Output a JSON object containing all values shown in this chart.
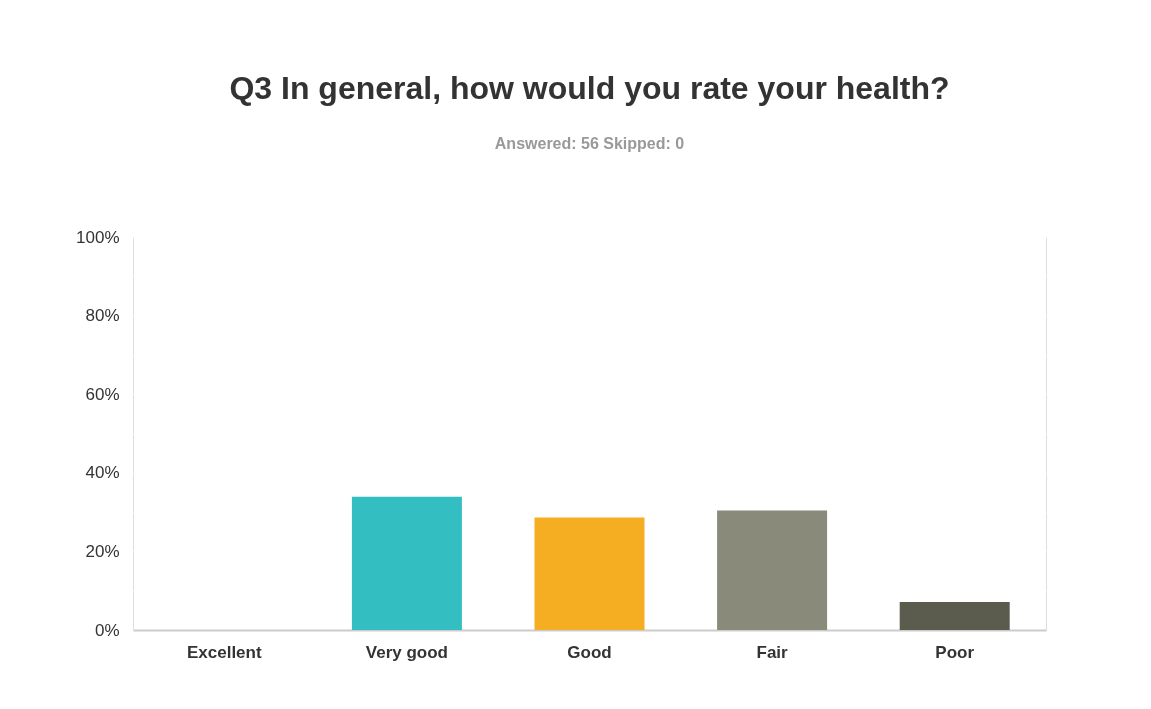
{
  "chart_data": {
    "type": "bar",
    "title": "Q3 In general, how would you rate your health?",
    "subtitle": "Answered: 56    Skipped: 0",
    "categories": [
      "Excellent",
      "Very good",
      "Good",
      "Fair",
      "Poor"
    ],
    "values": [
      0,
      33.9,
      28.6,
      30.4,
      7.1
    ],
    "colors": [
      "#2a9fd6",
      "#33bfc1",
      "#f5ae22",
      "#898a7a",
      "#5b5b4e"
    ],
    "ylim": [
      0,
      100
    ],
    "yticks": [
      {
        "value": 0,
        "label": "0%"
      },
      {
        "value": 10,
        "label": null
      },
      {
        "value": 20,
        "label": "20%"
      },
      {
        "value": 30,
        "label": null
      },
      {
        "value": 40,
        "label": "40%"
      },
      {
        "value": 50,
        "label": null
      },
      {
        "value": 60,
        "label": "60%"
      },
      {
        "value": 70,
        "label": null
      },
      {
        "value": 80,
        "label": "80%"
      },
      {
        "value": 90,
        "label": null
      },
      {
        "value": 100,
        "label": "100%"
      }
    ],
    "grid": "y",
    "legend": false
  }
}
